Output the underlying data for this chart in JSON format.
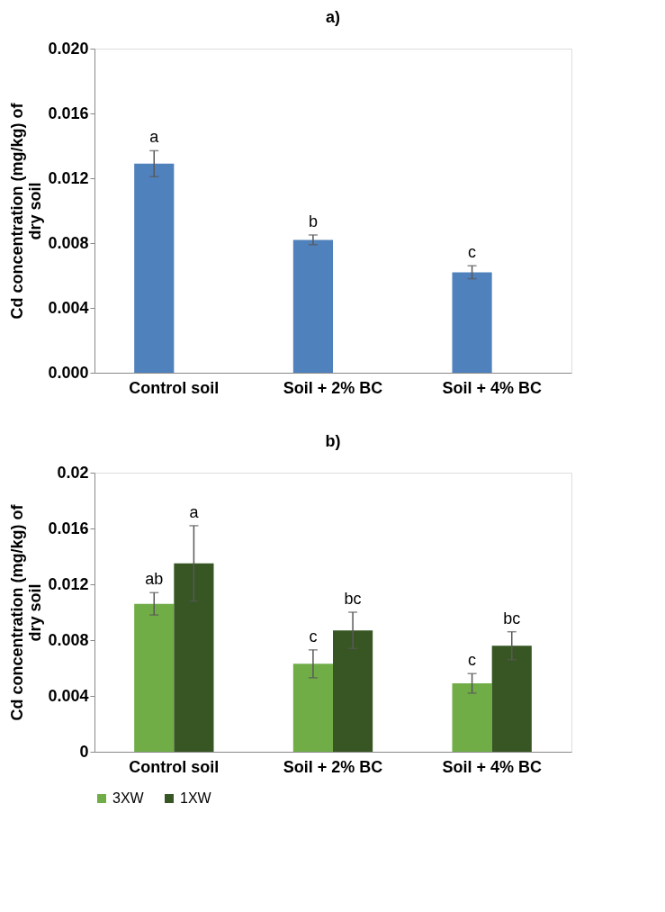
{
  "chart_data": [
    {
      "type": "bar",
      "title": "a)",
      "ylabel": "Cd concentration (mg/kg) of dry soil",
      "categories": [
        "Control soil",
        "Soil + 2% BC",
        "Soil + 4% BC"
      ],
      "series": [
        {
          "color": "#4f81bd",
          "values": [
            0.0129,
            0.0082,
            0.0062
          ],
          "errors": [
            0.0008,
            0.0003,
            0.0004
          ],
          "value_labels": [
            "a",
            "b",
            "c"
          ]
        }
      ],
      "ylim": [
        0,
        0.02
      ],
      "yticks": [
        {
          "value": 0,
          "label": "0.000"
        },
        {
          "value": 0.004,
          "label": "0.004"
        },
        {
          "value": 0.008,
          "label": "0.008"
        },
        {
          "value": 0.012,
          "label": "0.012"
        },
        {
          "value": 0.016,
          "label": "0.016"
        },
        {
          "value": 0.02,
          "label": "0.020"
        }
      ],
      "grid": false,
      "legend": false
    },
    {
      "type": "bar",
      "title": "b)",
      "ylabel": "Cd concentration (mg/kg) of dry soil",
      "categories": [
        "Control soil",
        "Soil + 2% BC",
        "Soil + 4% BC"
      ],
      "series": [
        {
          "name": "3XW",
          "color": "#70ad47",
          "values": [
            0.0106,
            0.0063,
            0.0049
          ],
          "errors": [
            0.0008,
            0.001,
            0.0007
          ],
          "value_labels": [
            "ab",
            "c",
            "c"
          ]
        },
        {
          "name": "1XW",
          "color": "#375623",
          "values": [
            0.0135,
            0.0087,
            0.0076
          ],
          "errors": [
            0.0027,
            0.0013,
            0.001
          ],
          "value_labels": [
            "a",
            "bc",
            "bc"
          ]
        }
      ],
      "ylim": [
        0,
        0.02
      ],
      "yticks": [
        0,
        0.004,
        0.008,
        0.012,
        0.016,
        0.02
      ],
      "grid": false,
      "legend": "bottom"
    }
  ]
}
